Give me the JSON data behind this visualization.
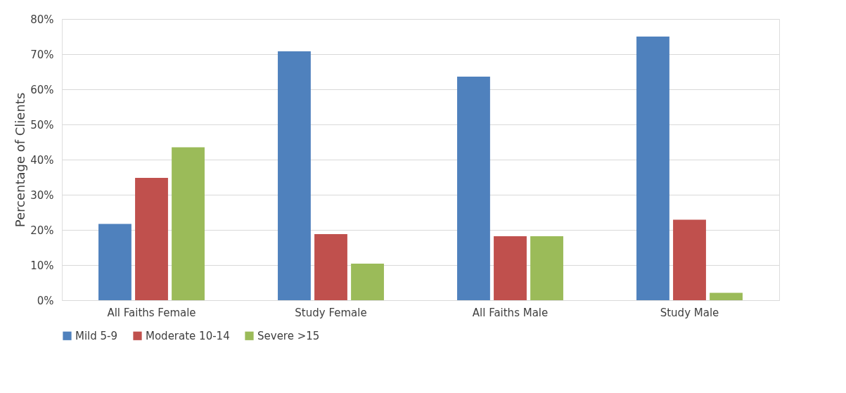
{
  "chart_data": {
    "type": "bar",
    "ylabel": "Percentage of Clients",
    "categories": [
      "All Faiths Female",
      "Study Female",
      "All Faiths Male",
      "Study Male"
    ],
    "series": [
      {
        "name": "Mild 5-9",
        "color": "#4f81bd",
        "values": [
          21.7,
          70.8,
          63.6,
          75.0
        ]
      },
      {
        "name": "Moderate 10-14",
        "color": "#c0504d",
        "values": [
          34.8,
          18.8,
          18.2,
          22.9
        ]
      },
      {
        "name": "Severe >15",
        "color": "#9bbb59",
        "values": [
          43.5,
          10.4,
          18.2,
          2.1
        ]
      }
    ],
    "ylim": [
      0,
      80
    ],
    "yticks": [
      {
        "value": 0,
        "label": "0%"
      },
      {
        "value": 10,
        "label": "10%"
      },
      {
        "value": 20,
        "label": "20%"
      },
      {
        "value": 30,
        "label": "30%"
      },
      {
        "value": 40,
        "label": "40%"
      },
      {
        "value": 50,
        "label": "50%"
      },
      {
        "value": 60,
        "label": "60%"
      },
      {
        "value": 70,
        "label": "70%"
      },
      {
        "value": 80,
        "label": "80%"
      }
    ],
    "grid": "y",
    "legend": "bottom"
  }
}
